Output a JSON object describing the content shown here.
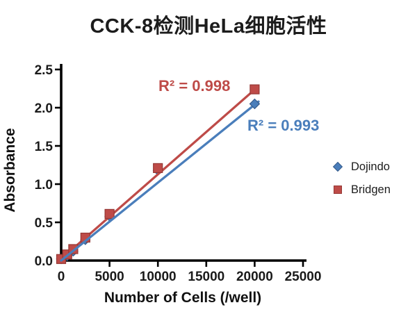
{
  "title": "CCK-8检测HeLa细胞活性",
  "chart_data": {
    "type": "scatter",
    "title": "CCK-8检测HeLa细胞活性",
    "xlabel": "Number of Cells (/well)",
    "ylabel": "Absorbance",
    "xlim": [
      0,
      25000
    ],
    "ylim": [
      0.0,
      2.5
    ],
    "x_ticks": [
      "0",
      "5000",
      "10000",
      "15000",
      "20000",
      "25000"
    ],
    "y_ticks": [
      "0.0",
      "0.5",
      "1.0",
      "1.5",
      "2.0",
      "2.5"
    ],
    "grid": false,
    "legend_position": "right-middle",
    "axis_color": "#000000",
    "tick_label_color": "#1a1a1a",
    "series": [
      {
        "name": "Dojindo",
        "marker": "diamond",
        "color": "#4a7ebb",
        "edge_color": "#385d8a",
        "r2_label": "R² = 0.993",
        "points": [
          [
            0,
            0.02
          ],
          [
            625,
            0.06
          ],
          [
            1250,
            0.12
          ],
          [
            2500,
            0.27
          ],
          [
            5000,
            0.58
          ],
          [
            10000,
            1.18
          ],
          [
            20000,
            2.05
          ]
        ],
        "trendline": {
          "x1": 0,
          "y1": 0.0,
          "x2": 20400,
          "y2": 2.08
        }
      },
      {
        "name": "Bridgen",
        "marker": "square",
        "color": "#be4b48",
        "edge_color": "#953734",
        "r2_label": "R² = 0.998",
        "points": [
          [
            0,
            0.02
          ],
          [
            625,
            0.08
          ],
          [
            1250,
            0.15
          ],
          [
            2500,
            0.3
          ],
          [
            5000,
            0.61
          ],
          [
            10000,
            1.21
          ],
          [
            20000,
            2.24
          ]
        ],
        "trendline": {
          "x1": 0,
          "y1": 0.02,
          "x2": 20300,
          "y2": 2.27
        }
      }
    ]
  }
}
